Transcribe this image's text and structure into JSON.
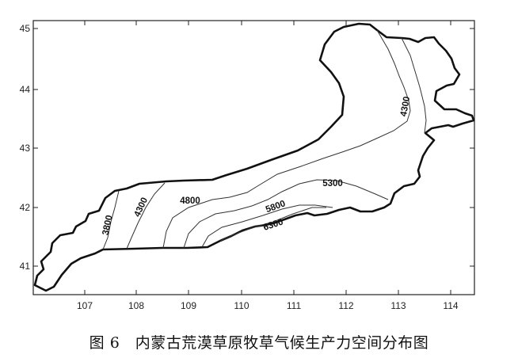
{
  "caption": "图 6　内蒙古荒漠草原牧草气候生产力空间分布图",
  "map": {
    "x_ticks": [
      "107",
      "108",
      "109",
      "110",
      "111",
      "112",
      "113",
      "114"
    ],
    "y_ticks": [
      "45",
      "44",
      "43",
      "42",
      "41"
    ],
    "contour_labels": [
      "3800",
      "4300",
      "4800",
      "5300",
      "5800",
      "6300",
      "4300"
    ]
  }
}
